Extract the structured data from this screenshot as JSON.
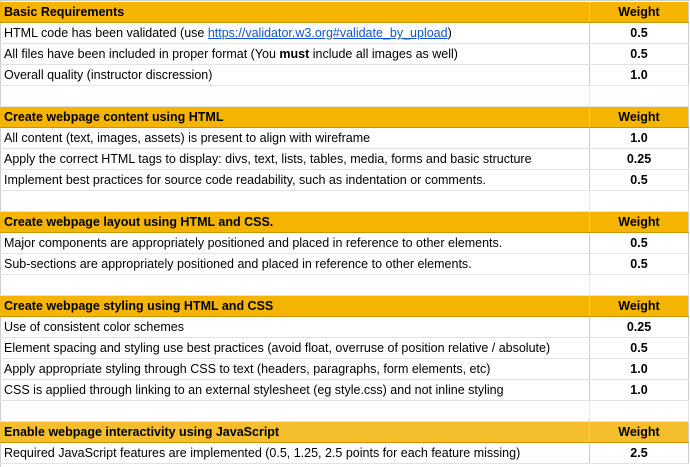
{
  "sections": [
    {
      "title": "Basic Requirements",
      "weight_header": "Weight",
      "rows": [
        {
          "pre": "HTML code has been validated (use ",
          "link": "https://validator.w3.org#validate_by_upload",
          "post": ")",
          "weight": "0.5"
        },
        {
          "pre": "All files have been included in proper format (You ",
          "bold": "must",
          "post": " include all images as well)",
          "weight": "0.5"
        },
        {
          "text": "Overall quality (instructor discression)",
          "weight": "1.0"
        }
      ]
    },
    {
      "title": "Create webpage content using HTML",
      "weight_header": "Weight",
      "rows": [
        {
          "text": "All content (text, images, assets) is present to align with wireframe",
          "weight": "1.0"
        },
        {
          "text": "Apply the correct HTML tags to display: divs, text, lists, tables, media, forms and basic structure",
          "weight": "0.25"
        },
        {
          "text": "Implement best practices for source code readability, such as indentation or comments.",
          "weight": "0.5"
        }
      ]
    },
    {
      "title": "Create webpage layout using HTML and CSS.",
      "weight_header": "Weight",
      "rows": [
        {
          "text": "Major components are appropriately positioned and placed in reference to other elements.",
          "weight": "0.5"
        },
        {
          "text": "Sub-sections are appropriately positioned and placed in reference to other elements.",
          "weight": "0.5"
        }
      ]
    },
    {
      "title": "Create webpage styling using HTML and CSS",
      "weight_header": "Weight",
      "rows": [
        {
          "text": "Use of consistent color schemes",
          "weight": "0.25"
        },
        {
          "text": "Element spacing and styling use best practices (avoid float, overruse of position relative / absolute)",
          "weight": "0.5"
        },
        {
          "text": "Apply appropriate styling through CSS to text (headers, paragraphs, form elements, etc)",
          "weight": "1.0"
        },
        {
          "text": "CSS is applied through linking to an external stylesheet (eg style.css) and not inline styling",
          "weight": "1.0"
        }
      ]
    },
    {
      "title": "Enable webpage interactivity using JavaScript",
      "weight_header": "Weight",
      "rows": [
        {
          "text": "Required JavaScript features are implemented (0.5, 1.25, 2.5 points for each feature missing)",
          "weight": "2.5"
        }
      ]
    }
  ],
  "colors": {
    "header_bg": "#f4b400",
    "link": "#1155cc"
  }
}
